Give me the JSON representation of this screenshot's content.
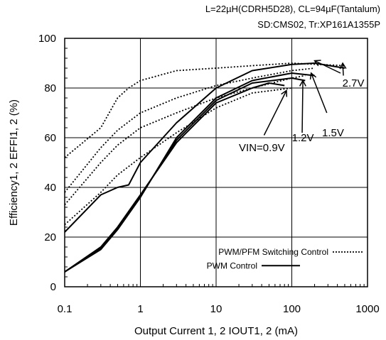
{
  "header": {
    "condition_line1": "L=22µH(CDRH5D28), CL=94µF(Tantalum)",
    "condition_line2": "SD:CMS02, Tr:XP161A1355P"
  },
  "chart_data": {
    "type": "line",
    "title": "",
    "xlabel": "Output Current 1, 2 IOUT1, 2 (mA)",
    "ylabel": "Efficiency1, 2 EFFI1, 2 (%)",
    "xscale": "log",
    "xlim": [
      0.1,
      1000
    ],
    "ylim": [
      0,
      100
    ],
    "xticks": [
      0.1,
      1,
      10,
      100,
      1000
    ],
    "xtick_labels": [
      "0.1",
      "1",
      "10",
      "100",
      "1000"
    ],
    "yticks": [
      0,
      20,
      40,
      60,
      80,
      100
    ],
    "ytick_labels": [
      "0",
      "20",
      "40",
      "60",
      "80",
      "100"
    ],
    "grid": true,
    "legend": {
      "placement": "bottom-right",
      "entries": [
        {
          "label": "PWM/PFM Switching Control",
          "style": "dotted"
        },
        {
          "label": "PWM Control",
          "style": "solid"
        }
      ]
    },
    "annotations": [
      "VIN=0.9V",
      "1.2V",
      "1.5V",
      "2.7V"
    ],
    "series": [
      {
        "control": "PWM/PFM",
        "vin": "0.9V",
        "x": [
          0.1,
          0.3,
          0.5,
          1,
          3,
          10,
          30,
          100
        ],
        "y": [
          25,
          38,
          45,
          52,
          62,
          72,
          78,
          80
        ]
      },
      {
        "control": "PWM/PFM",
        "vin": "1.2V",
        "x": [
          0.1,
          0.3,
          0.5,
          1,
          3,
          10,
          30,
          100,
          150
        ],
        "y": [
          33,
          50,
          57,
          64,
          70,
          76,
          80,
          84,
          85
        ]
      },
      {
        "control": "PWM/PFM",
        "vin": "1.5V",
        "x": [
          0.1,
          0.3,
          0.5,
          1,
          3,
          10,
          30,
          100,
          200
        ],
        "y": [
          38,
          56,
          63,
          70,
          76,
          81,
          84,
          87,
          88
        ]
      },
      {
        "control": "PWM/PFM",
        "vin": "2.7V",
        "x": [
          0.1,
          0.3,
          0.5,
          0.7,
          1,
          3,
          10,
          30,
          100,
          500
        ],
        "y": [
          52,
          64,
          76,
          80,
          83,
          87,
          88,
          89,
          90,
          89
        ]
      },
      {
        "control": "PWM",
        "vin": "0.9V",
        "x": [
          0.1,
          0.3,
          0.5,
          1,
          3,
          10,
          30,
          50,
          80
        ],
        "y": [
          6,
          16,
          24,
          37,
          58,
          74,
          80,
          82,
          81
        ]
      },
      {
        "control": "PWM",
        "vin": "1.2V",
        "x": [
          0.1,
          0.3,
          0.5,
          1,
          3,
          10,
          30,
          100,
          150
        ],
        "y": [
          6,
          15.5,
          23.5,
          36.5,
          59,
          75,
          82,
          84,
          83
        ]
      },
      {
        "control": "PWM",
        "vin": "1.5V",
        "x": [
          0.1,
          0.3,
          0.5,
          1,
          3,
          10,
          30,
          100,
          200
        ],
        "y": [
          6,
          15,
          23,
          36,
          60,
          76,
          83,
          86,
          85
        ]
      },
      {
        "control": "PWM",
        "vin": "2.7V",
        "x": [
          0.1,
          0.3,
          0.5,
          0.7,
          1,
          3,
          10,
          30,
          100,
          200,
          500
        ],
        "y": [
          22,
          37,
          40,
          41,
          50,
          66,
          80,
          87,
          89.5,
          90,
          88
        ]
      }
    ]
  }
}
